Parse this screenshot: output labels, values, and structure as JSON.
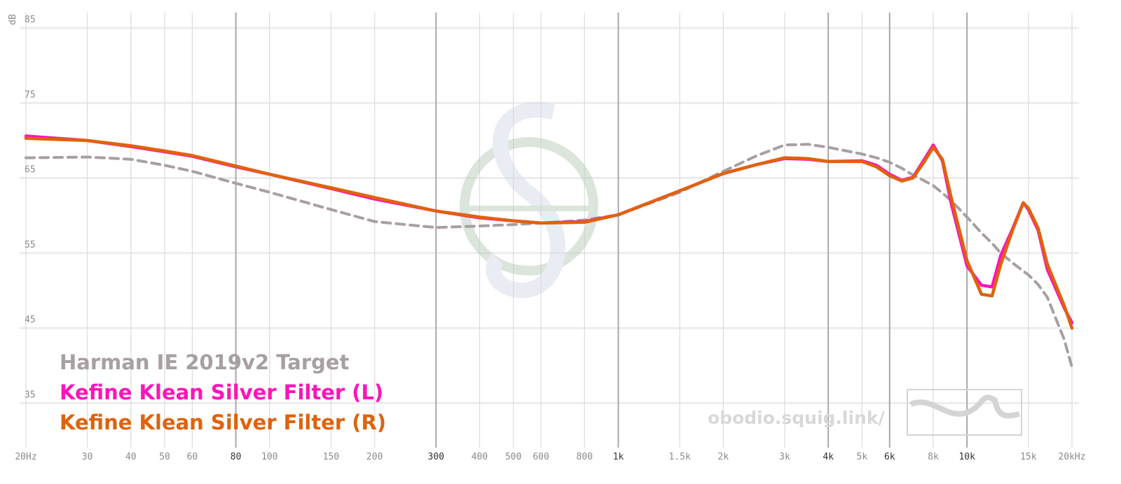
{
  "chart_data": {
    "type": "line",
    "y_label": "dB",
    "watermark": "obodio.squig.link/",
    "x_log": true,
    "grid": true,
    "xlim": [
      20,
      20000
    ],
    "ylim": [
      30,
      85
    ],
    "yticks": [
      35,
      45,
      55,
      65,
      75,
      85
    ],
    "xticks": [
      {
        "value": 20,
        "label": "20Hz"
      },
      30,
      40,
      50,
      60,
      80,
      100,
      150,
      200,
      300,
      400,
      500,
      600,
      800,
      {
        "value": 1000,
        "label": "1k"
      },
      {
        "value": 1500,
        "label": "1.5k"
      },
      {
        "value": 2000,
        "label": "2k"
      },
      {
        "value": 3000,
        "label": "3k"
      },
      {
        "value": 4000,
        "label": "4k"
      },
      {
        "value": 5000,
        "label": "5k"
      },
      {
        "value": 6000,
        "label": "6k"
      },
      {
        "value": 8000,
        "label": "8k"
      },
      {
        "value": 10000,
        "label": "10k"
      },
      {
        "value": 15000,
        "label": "15k"
      },
      {
        "value": 20000,
        "label": "20kHz"
      }
    ],
    "emphasized_xticks": [
      80,
      300,
      1000,
      4000,
      6000,
      10000
    ],
    "x": [
      20,
      30,
      40,
      50,
      60,
      80,
      100,
      150,
      200,
      300,
      400,
      500,
      600,
      800,
      1000,
      1500,
      2000,
      2500,
      3000,
      3500,
      4000,
      5000,
      5500,
      6000,
      6500,
      7000,
      7500,
      8000,
      8500,
      9000,
      10000,
      11000,
      11800,
      12500,
      13500,
      14500,
      15000,
      16000,
      17000,
      19000,
      20000
    ],
    "series": [
      {
        "name": "Harman IE 2019v2 Target",
        "color": "#a79fa2",
        "dashed": true,
        "values": [
          67.7,
          67.8,
          67.5,
          66.7,
          65.9,
          64.3,
          63.1,
          60.8,
          59.2,
          58.4,
          58.6,
          58.8,
          59.0,
          59.4,
          60.1,
          63.1,
          65.9,
          68.0,
          69.4,
          69.5,
          69.1,
          68.2,
          67.7,
          67.1,
          66.3,
          65.4,
          64.7,
          64.0,
          63.0,
          62.0,
          59.8,
          57.7,
          56.3,
          55.0,
          53.7,
          52.6,
          52.1,
          50.8,
          49.1,
          43.5,
          39.8
        ]
      },
      {
        "name": "Kefine Klean Silver Filter (L)",
        "color": "#ff14b9",
        "dashed": false,
        "values": [
          70.6,
          70.0,
          69.2,
          68.5,
          67.9,
          66.5,
          65.5,
          63.6,
          62.2,
          60.6,
          59.7,
          59.3,
          59.0,
          59.2,
          60.1,
          63.3,
          65.6,
          66.8,
          67.6,
          67.5,
          67.2,
          67.3,
          66.7,
          65.5,
          64.7,
          65.1,
          67.3,
          69.4,
          67.3,
          61.7,
          53.3,
          50.7,
          50.5,
          54.7,
          58.2,
          61.7,
          60.8,
          58.0,
          52.8,
          47.7,
          45.7
        ]
      },
      {
        "name": "Kefine Klean Silver Filter (R)",
        "color": "#e0620a",
        "dashed": false,
        "values": [
          70.3,
          70.0,
          69.3,
          68.6,
          68.0,
          66.6,
          65.5,
          63.7,
          62.4,
          60.6,
          59.8,
          59.3,
          59.0,
          59.1,
          60.1,
          63.3,
          65.6,
          66.8,
          67.7,
          67.6,
          67.2,
          67.2,
          66.5,
          65.3,
          64.6,
          65.0,
          67.0,
          69.1,
          67.5,
          62.5,
          54.0,
          49.5,
          49.3,
          53.5,
          58.0,
          61.7,
          61.0,
          58.3,
          53.5,
          48.0,
          45.0
        ]
      }
    ]
  }
}
